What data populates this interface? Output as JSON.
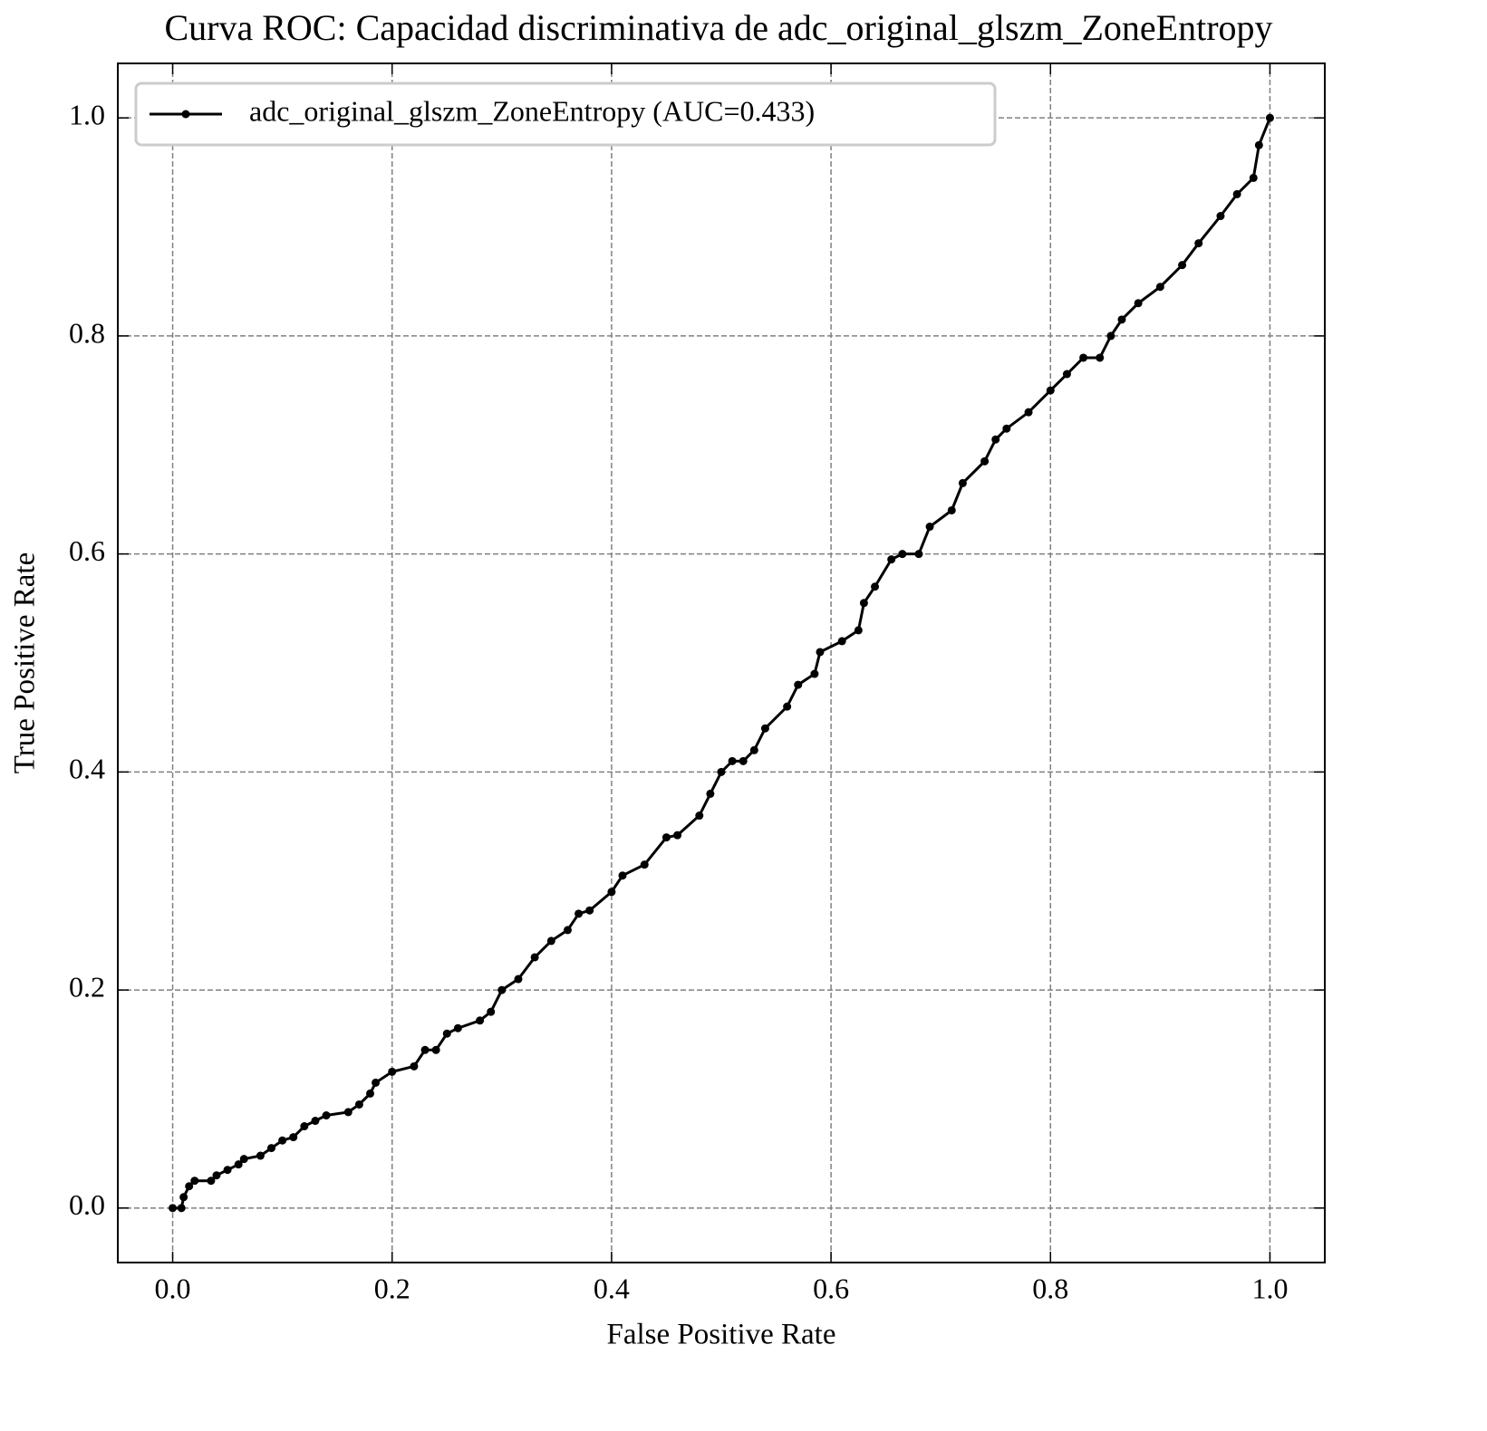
{
  "chart_data": {
    "type": "line",
    "title": "Curva ROC: Capacidad discriminativa de adc_original_glszm_ZoneEntropy",
    "xlabel": "False Positive Rate",
    "ylabel": "True Positive Rate",
    "x": [
      0,
      0.008,
      0.01,
      0.015,
      0.02,
      0.035,
      0.04,
      0.05,
      0.06,
      0.065,
      0.08,
      0.09,
      0.1,
      0.11,
      0.12,
      0.13,
      0.14,
      0.16,
      0.17,
      0.18,
      0.185,
      0.2,
      0.22,
      0.23,
      0.24,
      0.25,
      0.26,
      0.28,
      0.29,
      0.3,
      0.315,
      0.33,
      0.345,
      0.36,
      0.37,
      0.38,
      0.4,
      0.41,
      0.43,
      0.45,
      0.46,
      0.48,
      0.49,
      0.5,
      0.51,
      0.52,
      0.53,
      0.54,
      0.56,
      0.57,
      0.585,
      0.59,
      0.61,
      0.625,
      0.63,
      0.64,
      0.655,
      0.665,
      0.68,
      0.69,
      0.71,
      0.72,
      0.74,
      0.75,
      0.76,
      0.78,
      0.8,
      0.815,
      0.83,
      0.845,
      0.855,
      0.865,
      0.88,
      0.9,
      0.92,
      0.935,
      0.955,
      0.97,
      0.985,
      0.99,
      1.0
    ],
    "series": [
      {
        "name": "adc_original_glszm_ZoneEntropy (AUC=0.433)",
        "color": "#000000",
        "values": [
          0,
          0,
          0.01,
          0.02,
          0.025,
          0.025,
          0.03,
          0.035,
          0.04,
          0.045,
          0.048,
          0.055,
          0.062,
          0.065,
          0.075,
          0.08,
          0.085,
          0.088,
          0.095,
          0.105,
          0.115,
          0.125,
          0.13,
          0.145,
          0.145,
          0.16,
          0.165,
          0.172,
          0.18,
          0.2,
          0.21,
          0.23,
          0.245,
          0.255,
          0.27,
          0.273,
          0.29,
          0.305,
          0.315,
          0.34,
          0.342,
          0.36,
          0.38,
          0.4,
          0.41,
          0.41,
          0.42,
          0.44,
          0.46,
          0.48,
          0.49,
          0.51,
          0.52,
          0.53,
          0.555,
          0.57,
          0.595,
          0.6,
          0.6,
          0.625,
          0.64,
          0.665,
          0.685,
          0.705,
          0.715,
          0.73,
          0.75,
          0.765,
          0.78,
          0.78,
          0.8,
          0.815,
          0.83,
          0.845,
          0.865,
          0.885,
          0.91,
          0.93,
          0.945,
          0.975,
          1.0
        ]
      }
    ],
    "xlim": [
      -0.05,
      1.05
    ],
    "ylim": [
      -0.05,
      1.05
    ],
    "xticks": [
      {
        "value": 0,
        "label": "0.0"
      },
      0.2,
      0.4,
      0.6,
      0.8,
      {
        "value": 1,
        "label": "1.0"
      }
    ],
    "yticks": [
      {
        "value": 0,
        "label": "0.0"
      },
      0.2,
      0.4,
      0.6,
      0.8,
      {
        "value": 1,
        "label": "1.0"
      }
    ],
    "grid": true,
    "legend": "upper left"
  }
}
